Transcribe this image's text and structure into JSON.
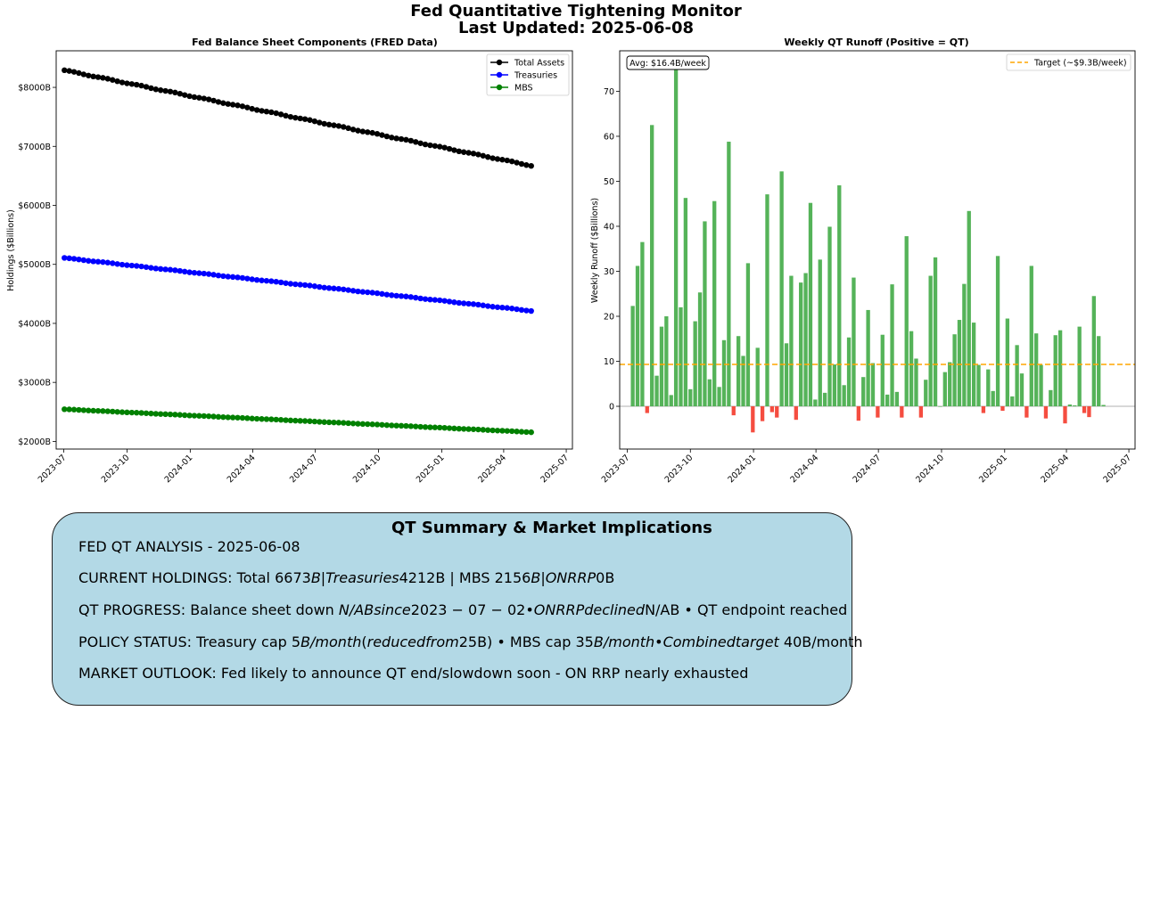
{
  "page": {
    "title_line1": "Fed Quantitative Tightening Monitor",
    "title_line2": "Last Updated: 2025-06-08"
  },
  "chart_data": [
    {
      "type": "line",
      "title": "Fed Balance Sheet Components (FRED Data)",
      "xlabel": "",
      "ylabel": "Holdings ($Billions)",
      "x_range": [
        "2023-06-20",
        "2025-07-10"
      ],
      "x_ticks": [
        "2023-07",
        "2023-10",
        "2024-01",
        "2024-04",
        "2024-07",
        "2024-10",
        "2025-01",
        "2025-04",
        "2025-07"
      ],
      "ylim": [
        1870,
        8620
      ],
      "y_ticks": [
        2000,
        3000,
        4000,
        5000,
        6000,
        7000,
        8000
      ],
      "y_tick_labels": [
        "$2000B",
        "$3000B",
        "$4000B",
        "$5000B",
        "$6000B",
        "$7000B",
        "$8000B"
      ],
      "legend": "top-right",
      "x_start": "2023-07-02",
      "x_step_days": 7,
      "series": [
        {
          "name": "Total Assets",
          "color": "#000000",
          "start": 8290,
          "end": 6673
        },
        {
          "name": "Treasuries",
          "color": "#0000ff",
          "start": 5110,
          "end": 4212
        },
        {
          "name": "MBS",
          "color": "#008000",
          "start": 2545,
          "end": 2156
        }
      ]
    },
    {
      "type": "bar",
      "title": "Weekly QT Runoff (Positive = QT)",
      "xlabel": "",
      "ylabel": "Weekly Runoff ($Billions)",
      "x_range": [
        "2023-06-20",
        "2025-07-10"
      ],
      "x_ticks": [
        "2023-07",
        "2023-10",
        "2024-01",
        "2024-04",
        "2024-07",
        "2024-10",
        "2025-01",
        "2025-04",
        "2025-07"
      ],
      "ylim": [
        -9.5,
        79
      ],
      "y_ticks": [
        0,
        10,
        20,
        30,
        40,
        50,
        60,
        70
      ],
      "x_start": "2023-07-09",
      "x_step_days": 7,
      "positive_color": "#4caf50",
      "negative_color": "#f44336",
      "values": [
        22.3,
        31.2,
        36.5,
        -1.5,
        62.5,
        6.8,
        17.7,
        20.0,
        2.5,
        74.8,
        22.0,
        46.3,
        3.8,
        18.9,
        25.3,
        41.1,
        6.0,
        45.6,
        4.3,
        14.7,
        58.8,
        -2.0,
        15.6,
        11.2,
        31.8,
        -5.8,
        13.0,
        -3.3,
        47.1,
        -1.3,
        -2.5,
        52.2,
        14.0,
        29.0,
        -3.0,
        27.5,
        29.6,
        45.2,
        1.5,
        32.6,
        3.0,
        39.9,
        9.3,
        49.1,
        4.7,
        15.3,
        28.6,
        -3.2,
        6.5,
        21.4,
        9.6,
        -2.5,
        15.9,
        2.6,
        27.1,
        3.2,
        -2.5,
        37.8,
        16.7,
        10.6,
        -2.5,
        5.9,
        29.0,
        33.1,
        0.0,
        7.6,
        9.8,
        16.0,
        19.2,
        27.2,
        43.4,
        18.6,
        9.2,
        -1.5,
        8.2,
        3.4,
        33.4,
        -1.0,
        19.5,
        2.2,
        13.6,
        7.3,
        -2.5,
        31.2,
        16.2,
        9.2,
        -2.7,
        3.6,
        15.8,
        16.9,
        -3.8,
        0.4,
        0.2,
        17.7,
        -1.5,
        -2.4,
        24.5,
        15.6,
        0.3
      ],
      "target_line": {
        "value": 9.3,
        "label": "Target (~$9.3B/week)",
        "color": "#ffa500"
      },
      "avg_label": "Avg: $16.4B/week",
      "legend": "top-right"
    }
  ],
  "summary": {
    "title": "QT Summary & Market Implications",
    "line1": "FED QT ANALYSIS - 2025-06-08",
    "line2": {
      "a": "CURRENT HOLDINGS: Total 6673",
      "b": "B|Treasuries",
      "c": "4212B | MBS 2156",
      "d": "B|ONRRP",
      "e": "0B"
    },
    "line3": {
      "a": "QT PROGRESS: Balance sheet down ",
      "b": "N/ABsince",
      "c": "2023 − 07 − 02",
      "d": "•ONRRPdeclined",
      "e": "N/AB • QT endpoint reached"
    },
    "line4": {
      "a": "POLICY STATUS: Treasury cap 5",
      "b": "B/month",
      "c": "(",
      "d": "reducedfrom",
      "e": "25B) • MBS cap 35",
      "f": "B/month•Combinedtarget",
      "g": " 40B/month"
    },
    "line5": "MARKET OUTLOOK: Fed likely to announce QT end/slowdown soon - ON RRP nearly exhausted"
  }
}
